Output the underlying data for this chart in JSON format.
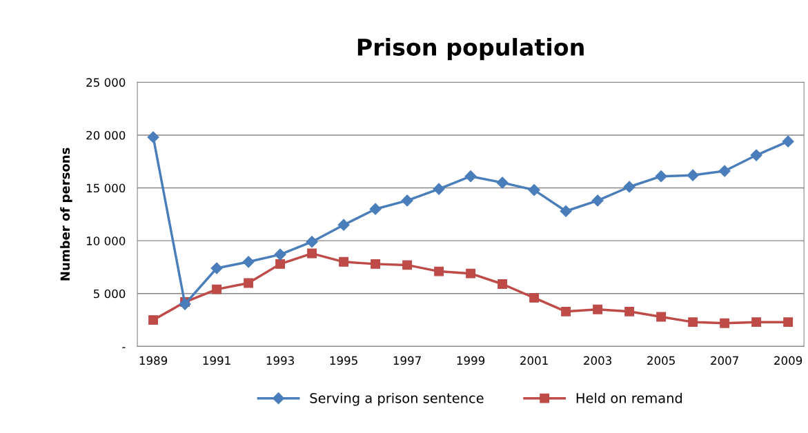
{
  "chart_data": {
    "type": "line",
    "title": "Prison population",
    "ylabel": "Number of persons",
    "categories": [
      "1989",
      null,
      "1991",
      null,
      "1993",
      null,
      "1995",
      null,
      "1997",
      null,
      "1999",
      null,
      "2001",
      null,
      "2003",
      null,
      "2005",
      null,
      "2007",
      null,
      "2009"
    ],
    "series": [
      {
        "name": "Serving a prison sentence",
        "color": "#4a7ebb",
        "marker": "diamond",
        "values": [
          19800,
          4000,
          7400,
          8000,
          8700,
          9900,
          11500,
          13000,
          13800,
          14900,
          16100,
          15500,
          14800,
          12800,
          13800,
          15100,
          16100,
          16200,
          16600,
          18100,
          19400
        ]
      },
      {
        "name": "Held on remand",
        "color": "#be4b48",
        "marker": "square",
        "values": [
          2500,
          4200,
          5400,
          6000,
          7800,
          8800,
          8000,
          7800,
          7700,
          7100,
          6900,
          5900,
          4600,
          3300,
          3500,
          3300,
          2800,
          2300,
          2200,
          2300,
          2300
        ]
      }
    ],
    "ylim": [
      0,
      25000
    ],
    "yticks": [
      {
        "value": 0,
        "label": "-"
      },
      {
        "value": 5000,
        "label": "5 000"
      },
      {
        "value": 10000,
        "label": "10 000"
      },
      {
        "value": 15000,
        "label": "15 000"
      },
      {
        "value": 20000,
        "label": "20 000"
      },
      {
        "value": 25000,
        "label": "25 000"
      }
    ],
    "grid": "y",
    "legend": "bottom",
    "line_style": "solid"
  }
}
